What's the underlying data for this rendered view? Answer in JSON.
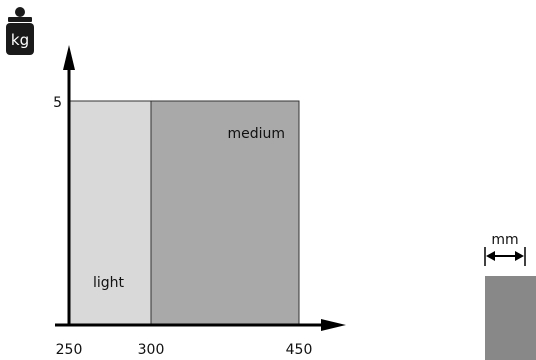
{
  "chart_data": {
    "type": "area",
    "title": "",
    "x_axis": {
      "unit_icon": "weight-kg-icon",
      "ticks": [
        "250",
        "300",
        "450"
      ],
      "range": [
        250,
        450
      ]
    },
    "y_axis": {
      "ticks": [
        "5"
      ],
      "range": [
        0,
        5
      ]
    },
    "regions": [
      {
        "label": "light",
        "x_start": 250,
        "x_end": 300,
        "y_top": 5,
        "color": "#d9d9d9"
      },
      {
        "label": "medium",
        "x_start": 300,
        "x_end": 450,
        "y_top": 5,
        "color": "#a9a9a9"
      }
    ]
  },
  "weight_icon": {
    "label": "kg"
  },
  "size_indicator": {
    "unit": "mm",
    "swatch_color": "#888888"
  },
  "colors": {
    "axis": "#000000",
    "icon": "#1a1a1a"
  }
}
